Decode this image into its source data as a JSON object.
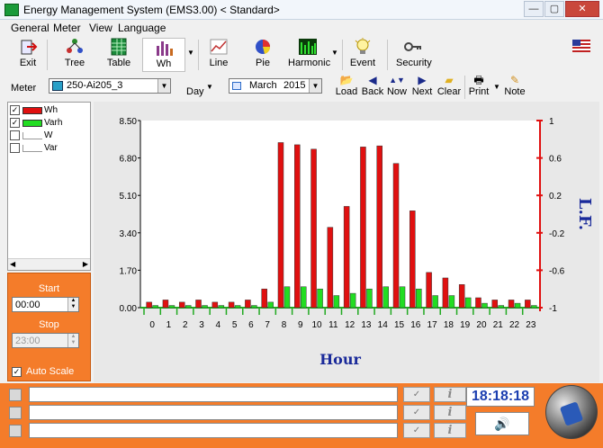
{
  "window": {
    "title": "Energy Management System (EMS3.00) < Standard>",
    "minimize": "—",
    "maximize": "▢",
    "close": "✕"
  },
  "menu": [
    "General",
    "Meter",
    "View",
    "Language"
  ],
  "toolbar": {
    "exit": "Exit",
    "tree": "Tree",
    "table": "Table",
    "wh": "Wh",
    "line": "Line",
    "pie": "Pie",
    "harmonic": "Harmonic",
    "event": "Event",
    "security": "Security"
  },
  "row2": {
    "meter_label": "Meter",
    "meter_value": "250-Ai205_3",
    "period": "Day",
    "month": "March",
    "year": "2015",
    "load": "Load",
    "back": "Back",
    "now": "Now",
    "next": "Next",
    "clear": "Clear",
    "print": "Print",
    "note": "Note"
  },
  "legend": [
    {
      "label": "Wh",
      "checked": true,
      "color": "#e01010"
    },
    {
      "label": "Varh",
      "checked": true,
      "color": "#22dd22"
    },
    {
      "label": "W",
      "checked": false,
      "color": ""
    },
    {
      "label": "Var",
      "checked": false,
      "color": ""
    }
  ],
  "range": {
    "start_label": "Start",
    "start_value": "00:00",
    "stop_label": "Stop",
    "stop_value": "23:00",
    "autoscale_label": "Auto Scale",
    "autoscale_checked": true
  },
  "chart_data": {
    "type": "bar",
    "xlabel": "Hour",
    "ylabel_right": "L.F.",
    "categories": [
      "0",
      "1",
      "2",
      "3",
      "4",
      "5",
      "6",
      "7",
      "8",
      "9",
      "10",
      "11",
      "12",
      "13",
      "14",
      "15",
      "16",
      "17",
      "18",
      "19",
      "20",
      "21",
      "22",
      "23"
    ],
    "ylim": [
      0,
      8.5
    ],
    "yticks": [
      "8.50",
      "6.80",
      "5.10",
      "3.40",
      "1.70",
      "0.00"
    ],
    "y2lim": [
      -1,
      1
    ],
    "y2ticks": [
      "1",
      "0.6",
      "0.2",
      "-0.2",
      "-0.6",
      "-1"
    ],
    "series": [
      {
        "name": "Wh",
        "color": "#e01010",
        "values": [
          0.25,
          0.35,
          0.25,
          0.35,
          0.25,
          0.25,
          0.35,
          0.85,
          7.5,
          7.4,
          7.2,
          3.65,
          4.6,
          7.3,
          7.35,
          6.55,
          4.4,
          1.6,
          1.35,
          1.05,
          0.45,
          0.35,
          0.35,
          0.35
        ]
      },
      {
        "name": "Varh",
        "color": "#22dd22",
        "values": [
          0.1,
          0.1,
          0.1,
          0.1,
          0.1,
          0.1,
          0.1,
          0.25,
          0.95,
          0.95,
          0.85,
          0.55,
          0.65,
          0.85,
          0.95,
          0.95,
          0.85,
          0.55,
          0.55,
          0.45,
          0.2,
          0.1,
          0.2,
          0.1
        ]
      }
    ]
  },
  "status": {
    "messages": [
      "",
      "",
      ""
    ],
    "check": "✓",
    "info": "i",
    "clock": "18:18:18",
    "sound": "🔊"
  }
}
